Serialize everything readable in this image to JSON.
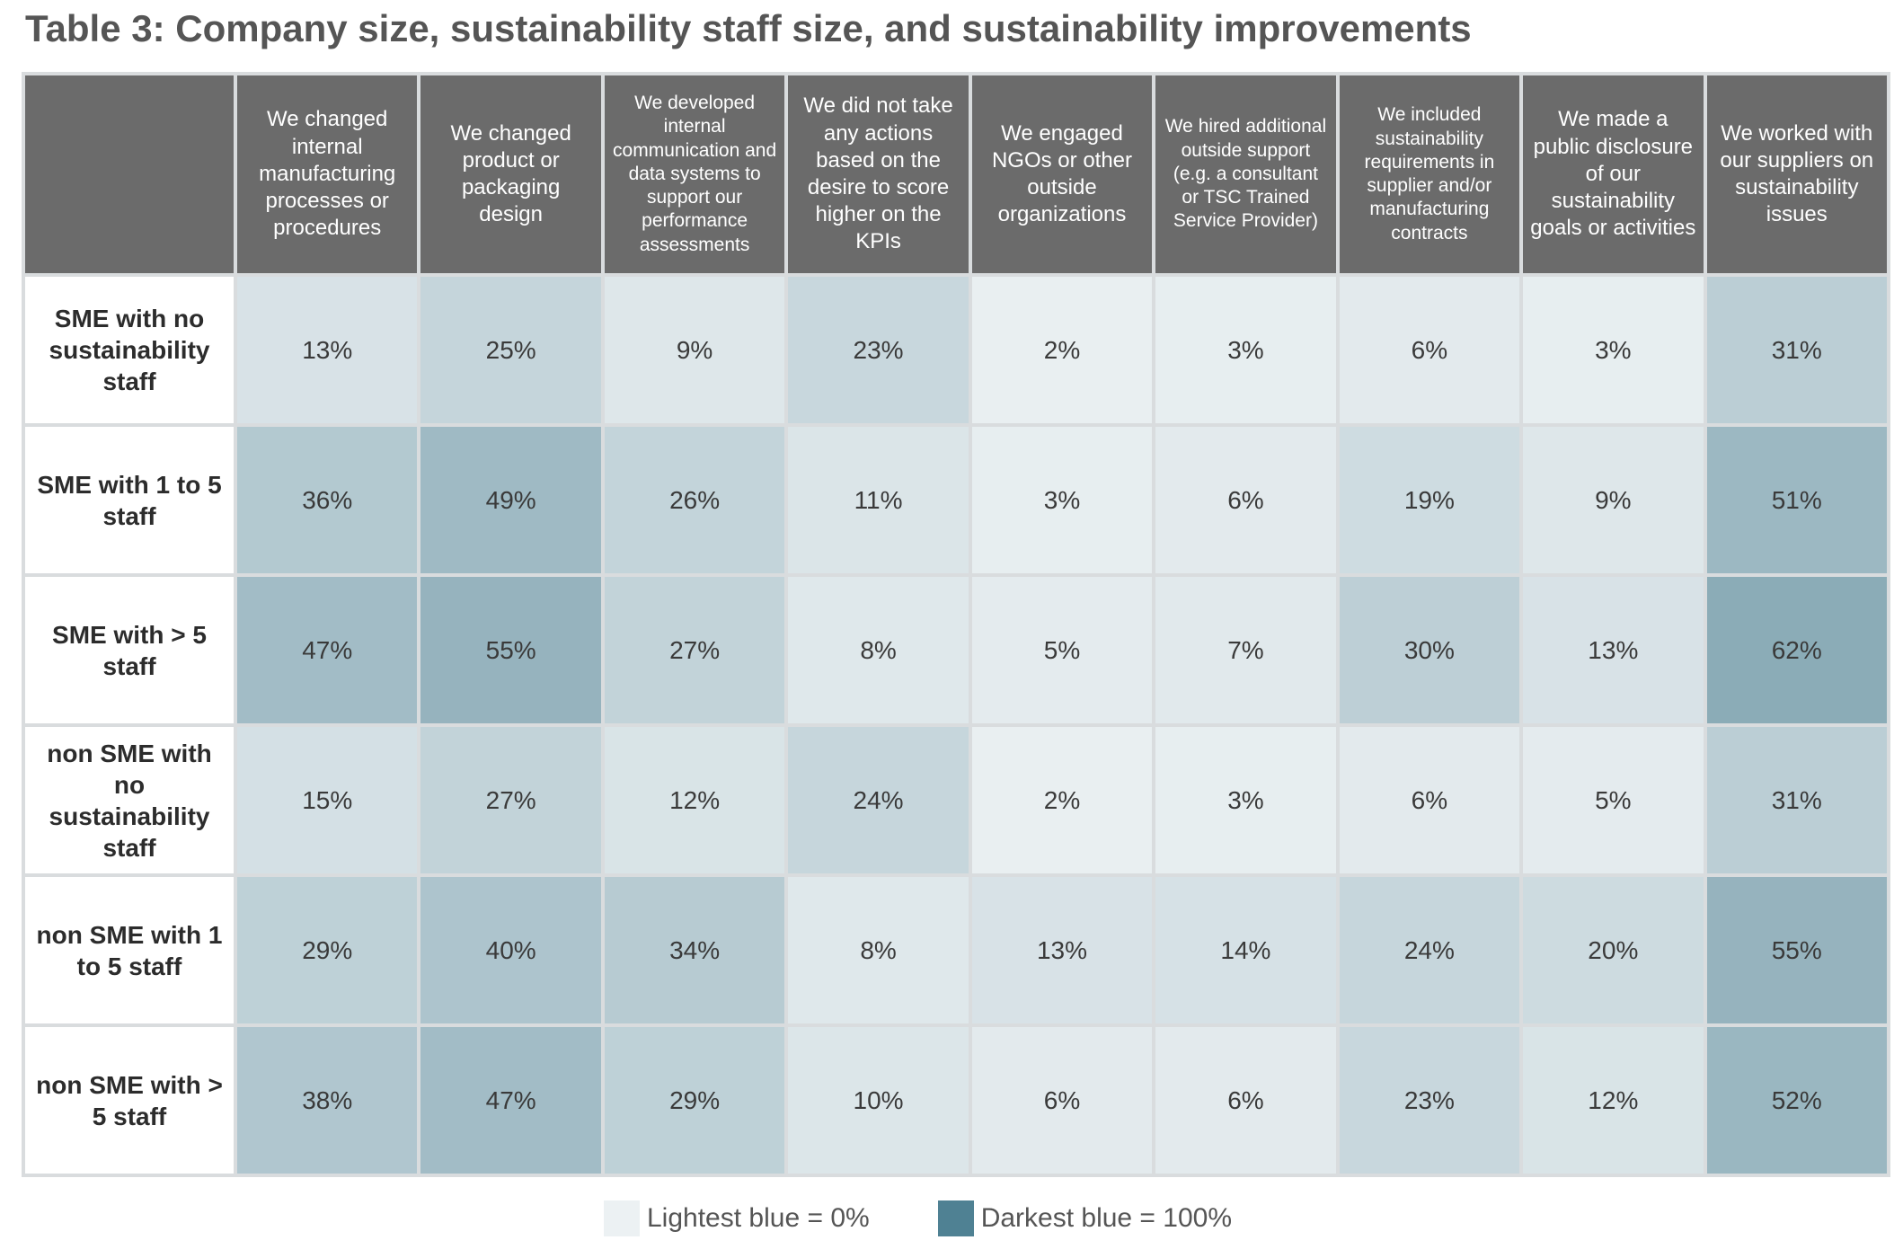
{
  "title": "Table 3: Company size, sustainability staff size, and sustainability improvements",
  "colors": {
    "lightest": "#ecf1f3",
    "darkest": "#4f8193",
    "header_bg": "#6b6b6b"
  },
  "legend": {
    "light_label": "Lightest blue = 0%",
    "dark_label": "Darkest blue = 100%"
  },
  "chart_data": {
    "type": "heatmap",
    "title": "Table 3: Company size, sustainability staff size, and sustainability improvements",
    "columns": [
      "We changed internal manufacturing processes or procedures",
      "We changed product or packaging design",
      "We developed internal communication and data systems to support our performance assessments",
      "We did not take any actions based on the desire to score higher on the KPIs",
      "We engaged NGOs or other outside organizations",
      "We hired additional outside support  (e.g. a consultant or TSC Trained Service Provider)",
      "We included sustainability requirements in supplier and/or manufacturing contracts",
      "We made a public disclosure of our sustainability goals or activities",
      "We worked with our suppliers on sustainability issues"
    ],
    "rows": [
      "SME with no sustainability staff",
      "SME with 1 to 5 staff",
      "SME with > 5 staff",
      "non SME with no sustainability staff",
      "non SME with 1 to 5 staff",
      "non SME with > 5 staff"
    ],
    "values": [
      [
        13,
        25,
        9,
        23,
        2,
        3,
        6,
        3,
        31
      ],
      [
        36,
        49,
        26,
        11,
        3,
        6,
        19,
        9,
        51
      ],
      [
        47,
        55,
        27,
        8,
        5,
        7,
        30,
        13,
        62
      ],
      [
        15,
        27,
        12,
        24,
        2,
        3,
        6,
        5,
        31
      ],
      [
        29,
        40,
        34,
        8,
        13,
        14,
        24,
        20,
        55
      ],
      [
        38,
        47,
        29,
        10,
        6,
        6,
        23,
        12,
        52
      ]
    ],
    "unit": "%",
    "scale": [
      0,
      100
    ]
  }
}
